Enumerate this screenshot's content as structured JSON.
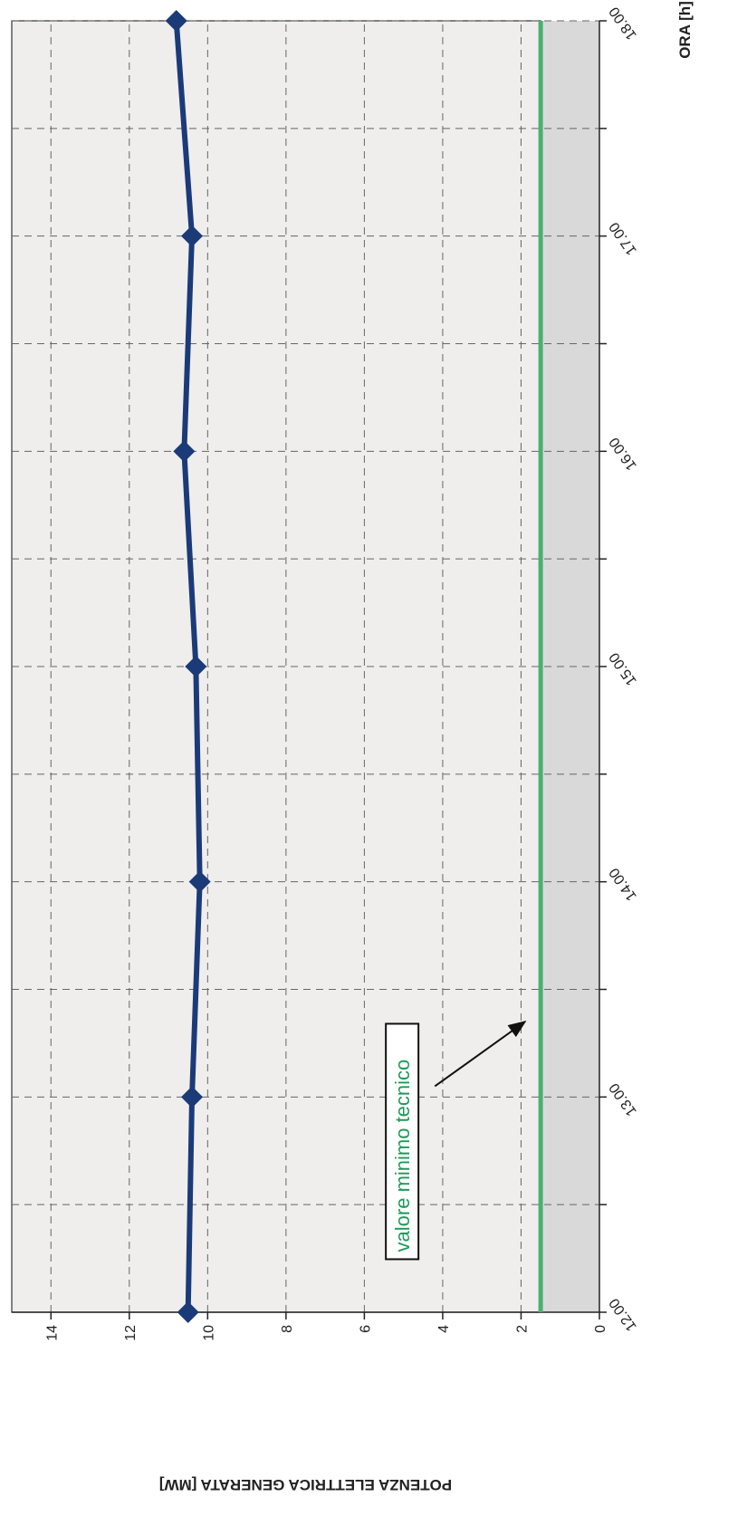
{
  "chart_data": {
    "type": "line",
    "title": "",
    "xlabel": "ORA [h]",
    "ylabel": "POTENZA ELETTRICA GENERATA [MW]",
    "x_tick_labels": [
      "12.00",
      "13.00",
      "14.00",
      "15.00",
      "16.00",
      "17.00",
      "18.00"
    ],
    "x_ticks": [
      12,
      13,
      14,
      15,
      16,
      17,
      18
    ],
    "x_minor_ticks": [
      12.5,
      13.5,
      14.5,
      15.5,
      16.5,
      17.5
    ],
    "y_tick_labels": [
      "0",
      "2",
      "4",
      "6",
      "8",
      "10",
      "12",
      "14"
    ],
    "y_ticks": [
      0,
      2,
      4,
      6,
      8,
      10,
      12,
      14
    ],
    "xlim": [
      12,
      18
    ],
    "ylim": [
      0,
      15
    ],
    "grid": true,
    "colors": {
      "series": "#1b3a78",
      "threshold": "#4caf6e",
      "annotation": "#1e9a5a",
      "gray_band": "#d9d9d9",
      "plot_area": "#efeeec"
    },
    "series": [
      {
        "values": [
          {
            "x": 12,
            "y": 10.5
          },
          {
            "x": 13,
            "y": 10.4
          },
          {
            "x": 14,
            "y": 10.2
          },
          {
            "x": 15,
            "y": 10.3
          },
          {
            "x": 16,
            "y": 10.6
          },
          {
            "x": 17,
            "y": 10.4
          },
          {
            "x": 18,
            "y": 10.8
          }
        ]
      }
    ],
    "threshold": {
      "y": 1.5,
      "label": "valore minimo tecnico"
    },
    "annotation_arrow": {
      "from": {
        "x": 13.05,
        "y": 4.2
      },
      "to": {
        "x": 13.35,
        "y": 1.9
      }
    }
  }
}
